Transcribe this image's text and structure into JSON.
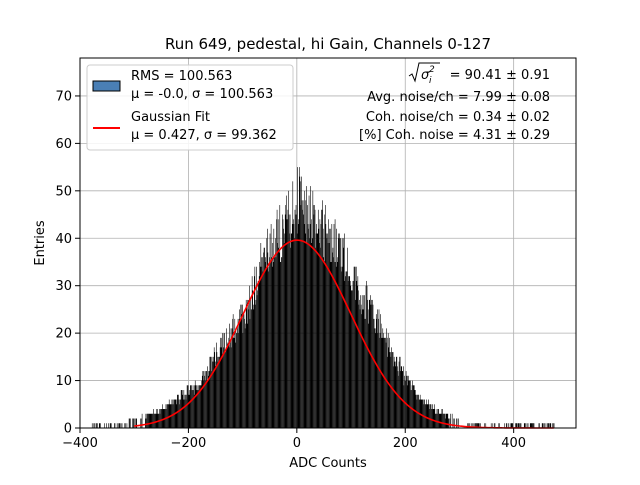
{
  "chart_data": {
    "type": "histogram",
    "title": "Run 649, pedestal, hi Gain, Channels 0-127",
    "xlabel": "ADC Counts",
    "ylabel": "Entries",
    "xlim": [
      -400,
      515
    ],
    "ylim": [
      0,
      78
    ],
    "xticks": [
      -400,
      -200,
      0,
      200,
      400
    ],
    "xtick_labels": [
      "−400",
      "−200",
      "0",
      "200",
      "400"
    ],
    "yticks": [
      0,
      10,
      20,
      30,
      40,
      50,
      60,
      70
    ],
    "ytick_labels": [
      "0",
      "10",
      "20",
      "30",
      "40",
      "50",
      "60",
      "70"
    ],
    "grid": true,
    "legend_position": "top-left",
    "histogram": {
      "name": "RMS = 100.563",
      "stats_label": "μ = -0.0, σ = 100.563",
      "color": "#000000",
      "legend_swatch_color": "#4a7fb5",
      "rms": 100.563,
      "mean": -0.0,
      "sigma": 100.563,
      "entries_profile": {
        "x": [
          -380,
          -340,
          -300,
          -260,
          -220,
          -180,
          -140,
          -100,
          -60,
          -20,
          0,
          20,
          60,
          100,
          140,
          180,
          220,
          260,
          300,
          340,
          380,
          420,
          475
        ],
        "peak_values": [
          1,
          1,
          2,
          4,
          7,
          11,
          20,
          27,
          41,
          50,
          56,
          52,
          48,
          38,
          28,
          17,
          8,
          4,
          2,
          1,
          1,
          1,
          1
        ]
      }
    },
    "fit": {
      "name": "Gaussian Fit",
      "stats_label": "μ = 0.427, σ = 99.362",
      "color": "#ff0000",
      "mu": 0.427,
      "sigma": 99.362,
      "amplitude": 39.6,
      "x_range": [
        -300,
        475
      ]
    },
    "annotations": {
      "sqrt_sigma_value": "= 90.41 ± 0.91",
      "avg_noise": "Avg. noise/ch = 7.99 ± 0.08",
      "coh_noise": "Coh. noise/ch = 0.34 ± 0.02",
      "pct_coh_noise": "[%] Coh. noise = 4.31 ± 0.29"
    }
  }
}
